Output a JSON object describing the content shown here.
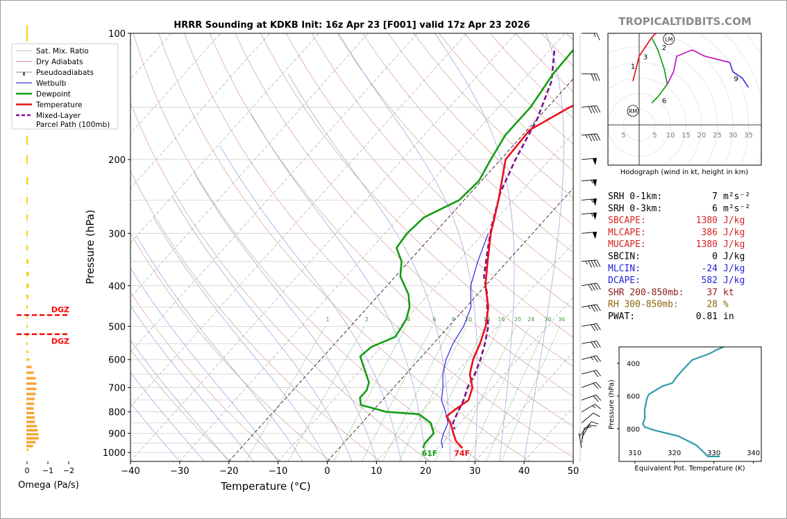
{
  "title": "HRRR Sounding at KDKB Init: 16z Apr 23 [F001] valid 17z Apr 23 2026",
  "watermark": "TROPICALTIDBITS.COM",
  "colors": {
    "temperature": "#e8101a",
    "dewpoint": "#129c12",
    "wetbulb": "#1212e0",
    "parcel": "#7a0f8a",
    "dry_adiabat": "#d48a8a",
    "moist_adiabat": "#8a8adc",
    "mixing_ratio": "#3f9a3f",
    "theta_e": "#2f9aa8"
  },
  "legend": [
    {
      "label": "Sat. Mix. Ratio",
      "icon": "dotted-green-line"
    },
    {
      "label": "Dry Adiabats",
      "icon": "thin-red-line"
    },
    {
      "label": "Pseudoadiabats",
      "icon": "thin-gray-line-with-marker"
    },
    {
      "label": "Wetbulb",
      "icon": "blue-line"
    },
    {
      "label": "Dewpoint",
      "icon": "green-line"
    },
    {
      "label": "Temperature",
      "icon": "red-line"
    },
    {
      "label": "Mixed-Layer\nParcel Path (100mb)",
      "icon": "purple-dashed-line"
    }
  ],
  "omega": {
    "xlabel": "Omega (Pa/s)",
    "ticks": [
      "0",
      "−1",
      "−2"
    ],
    "dgz_label": "DGZ",
    "dgz_top_hpa": 470,
    "dgz_bottom_hpa": 522,
    "bars": [
      {
        "p": 985,
        "v": 0.1
      },
      {
        "p": 965,
        "v": 0.32
      },
      {
        "p": 945,
        "v": 0.45
      },
      {
        "p": 925,
        "v": 0.6
      },
      {
        "p": 905,
        "v": 0.58
      },
      {
        "p": 885,
        "v": 0.55
      },
      {
        "p": 865,
        "v": 0.5
      },
      {
        "p": 845,
        "v": 0.42
      },
      {
        "p": 825,
        "v": 0.4
      },
      {
        "p": 805,
        "v": 0.38
      },
      {
        "p": 785,
        "v": 0.35
      },
      {
        "p": 765,
        "v": 0.38
      },
      {
        "p": 745,
        "v": 0.4
      },
      {
        "p": 725,
        "v": 0.45
      },
      {
        "p": 705,
        "v": 0.48
      },
      {
        "p": 685,
        "v": 0.48
      },
      {
        "p": 665,
        "v": 0.45
      },
      {
        "p": 645,
        "v": 0.35
      },
      {
        "p": 625,
        "v": 0.25
      },
      {
        "p": 600,
        "v": 0.15
      },
      {
        "p": 575,
        "v": 0.1
      },
      {
        "p": 550,
        "v": 0.05
      },
      {
        "p": 525,
        "v": 0.03
      },
      {
        "p": 500,
        "v": 0.02
      },
      {
        "p": 475,
        "v": 0.03
      },
      {
        "p": 450,
        "v": 0.05
      },
      {
        "p": 425,
        "v": 0.1
      },
      {
        "p": 400,
        "v": 0.12
      },
      {
        "p": 375,
        "v": 0.12
      },
      {
        "p": 350,
        "v": 0.1
      },
      {
        "p": 325,
        "v": 0.08
      },
      {
        "p": 300,
        "v": 0.07
      },
      {
        "p": 275,
        "v": 0.05
      },
      {
        "p": 250,
        "v": 0.06
      },
      {
        "p": 225,
        "v": 0.08
      },
      {
        "p": 200,
        "v": 0.06
      },
      {
        "p": 180,
        "v": 0.04
      },
      {
        "p": 160,
        "v": 0.02
      },
      {
        "p": 140,
        "v": 0.02
      },
      {
        "p": 120,
        "v": 0.02
      },
      {
        "p": 100,
        "v": 0.02
      }
    ]
  },
  "chart_data": [
    {
      "type": "line",
      "xlabel": "Temperature (°C)",
      "ylabel": "Pressure (hPa)",
      "xlim": [
        -40,
        50
      ],
      "ylim": [
        1050,
        100
      ],
      "yscale": "log",
      "x_ticks": [
        "−40",
        "−30",
        "−20",
        "−10",
        "0",
        "10",
        "20",
        "30",
        "40",
        "50"
      ],
      "y_ticks": [
        "100",
        "200",
        "300",
        "400",
        "500",
        "600",
        "700",
        "800",
        "900",
        "1000"
      ],
      "mixing_ratio_labels": [
        "1",
        "2",
        "4",
        "6",
        "8",
        "10",
        "13",
        "16",
        "20",
        "24",
        "30",
        "36"
      ],
      "surface_temp_label": "74F",
      "surface_dewpoint_label": "61F",
      "series": [
        {
          "name": "Temperature",
          "points": [
            [
              2.5,
              100
            ],
            [
              -4,
              120
            ],
            [
              -15.5,
              150
            ],
            [
              -19.5,
              170
            ],
            [
              -19,
              200
            ],
            [
              -13,
              250
            ],
            [
              -8.5,
              300
            ],
            [
              -4,
              350
            ],
            [
              0,
              400
            ],
            [
              4.5,
              450
            ],
            [
              7.5,
              500
            ],
            [
              9.5,
              550
            ],
            [
              11,
              600
            ],
            [
              13,
              650
            ],
            [
              16,
              700
            ],
            [
              17.5,
              750
            ],
            [
              16.5,
              790
            ],
            [
              16,
              820
            ],
            [
              18,
              850
            ],
            [
              20.5,
              900
            ],
            [
              22.5,
              940
            ],
            [
              25,
              975
            ]
          ]
        },
        {
          "name": "Dewpoint",
          "points": [
            [
              -25.5,
              100
            ],
            [
              -25,
              125
            ],
            [
              -23.5,
              150
            ],
            [
              -23.5,
              175
            ],
            [
              -22,
              200
            ],
            [
              -20.5,
              225
            ],
            [
              -21,
              250
            ],
            [
              -25,
              275
            ],
            [
              -25.5,
              300
            ],
            [
              -25,
              325
            ],
            [
              -21.5,
              350
            ],
            [
              -19,
              380
            ],
            [
              -14,
              420
            ],
            [
              -11.5,
              450
            ],
            [
              -10,
              480
            ],
            [
              -9.5,
              500
            ],
            [
              -9,
              530
            ],
            [
              -12,
              560
            ],
            [
              -12.5,
              590
            ],
            [
              -9.5,
              630
            ],
            [
              -6,
              680
            ],
            [
              -5,
              710
            ],
            [
              -5,
              740
            ],
            [
              -3.5,
              770
            ],
            [
              3,
              800
            ],
            [
              10,
              810
            ],
            [
              14,
              850
            ],
            [
              16.5,
              900
            ],
            [
              16.5,
              950
            ],
            [
              17,
              975
            ]
          ]
        },
        {
          "name": "Wetbulb",
          "points": [
            [
              -9,
              300
            ],
            [
              -6,
              350
            ],
            [
              -3,
              400
            ],
            [
              1,
              450
            ],
            [
              3,
              500
            ],
            [
              4,
              550
            ],
            [
              5.5,
              600
            ],
            [
              7.5,
              650
            ],
            [
              10,
              700
            ],
            [
              12,
              750
            ],
            [
              15,
              800
            ],
            [
              17.5,
              850
            ],
            [
              18.5,
              900
            ],
            [
              19.5,
              940
            ],
            [
              21,
              975
            ]
          ]
        },
        {
          "name": "Mixed-Layer Parcel Path (100mb)",
          "points": [
            [
              -29,
              110
            ],
            [
              -24,
              130
            ],
            [
              -20,
              160
            ],
            [
              -17,
              200
            ],
            [
              -14,
              240
            ],
            [
              -9.5,
              290
            ],
            [
              -6,
              330
            ],
            [
              -2,
              380
            ],
            [
              2,
              420
            ],
            [
              5,
              460
            ],
            [
              8,
              500
            ],
            [
              10.5,
              550
            ],
            [
              12.5,
              600
            ],
            [
              14,
              650
            ],
            [
              15,
              700
            ],
            [
              16.5,
              750
            ],
            [
              17.5,
              800
            ],
            [
              18.5,
              850
            ],
            [
              20,
              880
            ]
          ]
        }
      ]
    },
    {
      "type": "line",
      "title": "Hodograph (wind in kt, height in km)",
      "x_ticks": [
        "5",
        "5",
        "10",
        "15",
        "20",
        "25",
        "30",
        "35"
      ],
      "markers": [
        "LM",
        "RM"
      ],
      "height_labels": [
        "1",
        "2",
        "3",
        "6",
        "9"
      ],
      "series": [
        {
          "name": "0-3 km",
          "points": [
            [
              -2,
              14
            ],
            [
              -1,
              18
            ],
            [
              0,
              22
            ],
            [
              2,
              25
            ],
            [
              4,
              28
            ],
            [
              6,
              30
            ]
          ]
        },
        {
          "name": "3-6 km",
          "points": [
            [
              4,
              28
            ],
            [
              6,
              24
            ],
            [
              8,
              18
            ],
            [
              9,
              13
            ],
            [
              6,
              9
            ],
            [
              4,
              7
            ]
          ]
        },
        {
          "name": "6-9 km",
          "points": [
            [
              9,
              13
            ],
            [
              11,
              17
            ],
            [
              12,
              22
            ],
            [
              17,
              24
            ],
            [
              21,
              22
            ],
            [
              25,
              21
            ],
            [
              29,
              20
            ]
          ]
        },
        {
          "name": "9+ km",
          "points": [
            [
              29,
              20
            ],
            [
              30,
              17
            ],
            [
              33,
              15
            ],
            [
              35,
              12
            ]
          ]
        }
      ]
    },
    {
      "type": "line",
      "xlabel": "Equivalent Pot. Temperature (K)",
      "ylabel": "Pressure (hPa)",
      "xlim": [
        306,
        342
      ],
      "ylim": [
        1000,
        300
      ],
      "x_ticks": [
        "310",
        "320",
        "330",
        "340"
      ],
      "y_ticks": [
        "400",
        "600",
        "800"
      ],
      "series": [
        {
          "name": "Theta-e",
          "points": [
            [
              331.5,
              970
            ],
            [
              328.5,
              970
            ],
            [
              327.5,
              945
            ],
            [
              325.5,
              900
            ],
            [
              321,
              845
            ],
            [
              315,
              810
            ],
            [
              312.5,
              790
            ],
            [
              312,
              770
            ],
            [
              312.5,
              740
            ],
            [
              312.5,
              680
            ],
            [
              313,
              620
            ],
            [
              313.5,
              590
            ],
            [
              317,
              540
            ],
            [
              319.5,
              520
            ],
            [
              320.5,
              485
            ],
            [
              322.5,
              430
            ],
            [
              324.5,
              380
            ],
            [
              329,
              340
            ],
            [
              330.5,
              320
            ],
            [
              332.5,
              300
            ]
          ]
        }
      ]
    }
  ],
  "winds": [
    {
      "p": 975,
      "deg": 170,
      "kt": 5
    },
    {
      "p": 950,
      "deg": 190,
      "kt": 8
    },
    {
      "p": 925,
      "deg": 210,
      "kt": 10
    },
    {
      "p": 900,
      "deg": 220,
      "kt": 10
    },
    {
      "p": 850,
      "deg": 230,
      "kt": 12
    },
    {
      "p": 800,
      "deg": 240,
      "kt": 15
    },
    {
      "p": 750,
      "deg": 250,
      "kt": 18
    },
    {
      "p": 700,
      "deg": 250,
      "kt": 20
    },
    {
      "p": 650,
      "deg": 255,
      "kt": 22
    },
    {
      "p": 600,
      "deg": 255,
      "kt": 25
    },
    {
      "p": 550,
      "deg": 260,
      "kt": 28
    },
    {
      "p": 500,
      "deg": 260,
      "kt": 30
    },
    {
      "p": 450,
      "deg": 260,
      "kt": 35
    },
    {
      "p": 400,
      "deg": 260,
      "kt": 40
    },
    {
      "p": 350,
      "deg": 265,
      "kt": 45
    },
    {
      "p": 300,
      "deg": 265,
      "kt": 50
    },
    {
      "p": 270,
      "deg": 265,
      "kt": 55
    },
    {
      "p": 250,
      "deg": 265,
      "kt": 55
    },
    {
      "p": 225,
      "deg": 265,
      "kt": 55
    },
    {
      "p": 200,
      "deg": 265,
      "kt": 50
    },
    {
      "p": 175,
      "deg": 265,
      "kt": 45
    },
    {
      "p": 150,
      "deg": 265,
      "kt": 40
    },
    {
      "p": 125,
      "deg": 270,
      "kt": 30
    },
    {
      "p": 100,
      "deg": 270,
      "kt": 15
    }
  ],
  "indices": [
    {
      "label": "SRH 0-1km:",
      "value": "7",
      "unit": "m²s⁻²",
      "color": "#000000"
    },
    {
      "label": "SRH 0-3km:",
      "value": "6",
      "unit": "m²s⁻²",
      "color": "#000000"
    },
    {
      "label": "SBCAPE:",
      "value": "1380",
      "unit": "J/kg",
      "color": "#d62222"
    },
    {
      "label": "MLCAPE:",
      "value": "386",
      "unit": "J/kg",
      "color": "#d62222"
    },
    {
      "label": "MUCAPE:",
      "value": "1380",
      "unit": "J/kg",
      "color": "#d62222"
    },
    {
      "label": "SBCIN:",
      "value": "0",
      "unit": "J/kg",
      "color": "#000000"
    },
    {
      "label": "MLCIN:",
      "value": "-24",
      "unit": "J/kg",
      "color": "#2323d6"
    },
    {
      "label": "DCAPE:",
      "value": "582",
      "unit": "J/kg",
      "color": "#2323d6"
    },
    {
      "label": "SHR 200-850mb:",
      "value": "37",
      "unit": "kt",
      "color": "#8b1a1a"
    },
    {
      "label": "RH 300-850mb:",
      "value": "28",
      "unit": "%",
      "color": "#8b6508"
    },
    {
      "label": "PWAT:",
      "value": "0.81",
      "unit": "in",
      "color": "#000000"
    }
  ]
}
